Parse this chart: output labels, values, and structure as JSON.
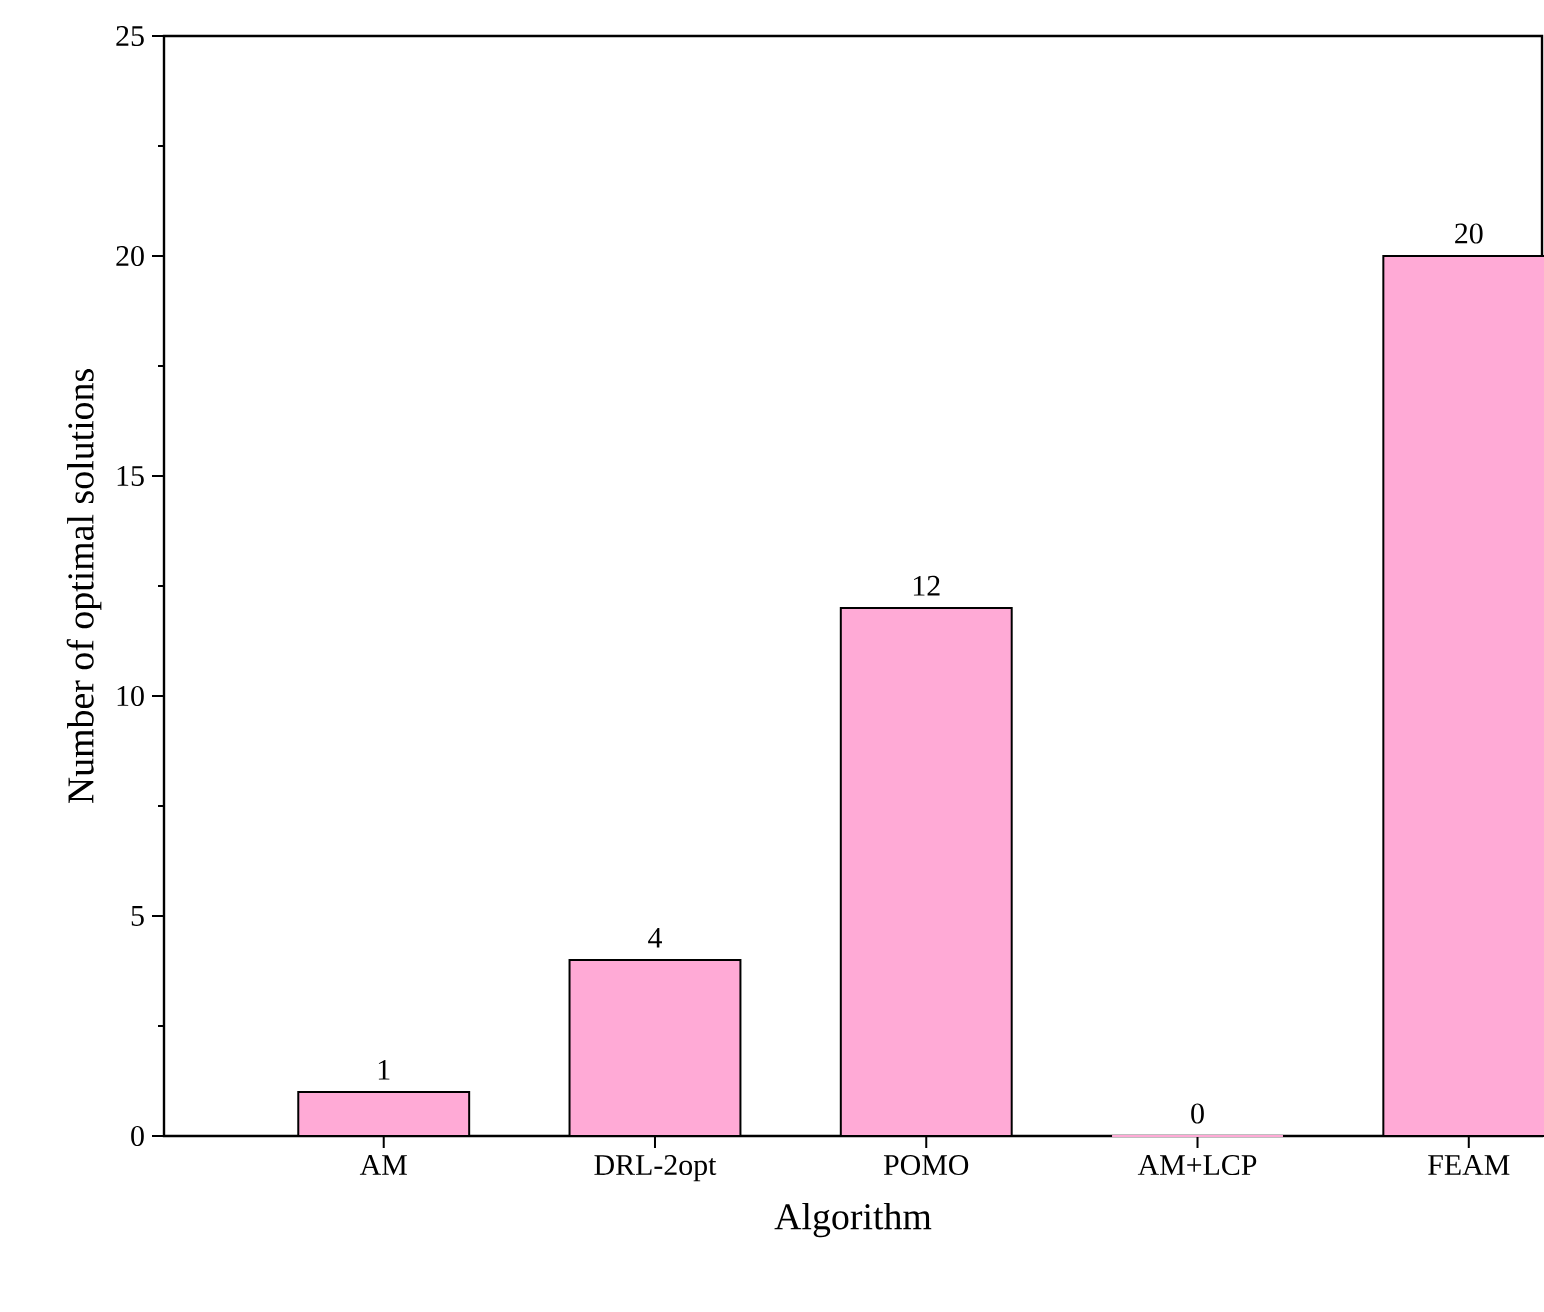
{
  "chart_data": {
    "type": "bar",
    "xlabel": "Algorithm",
    "ylabel": "Number of optimal solutions",
    "categories": [
      "AM",
      "DRL-2opt",
      "POMO",
      "AM+LCP",
      "FEAM"
    ],
    "values": [
      1,
      4,
      12,
      0,
      20
    ],
    "color": "#ffaad6",
    "ylim": [
      0,
      25
    ],
    "yticks": [
      0,
      5,
      10,
      15,
      20,
      25
    ],
    "grid": false,
    "data_labels": true
  }
}
